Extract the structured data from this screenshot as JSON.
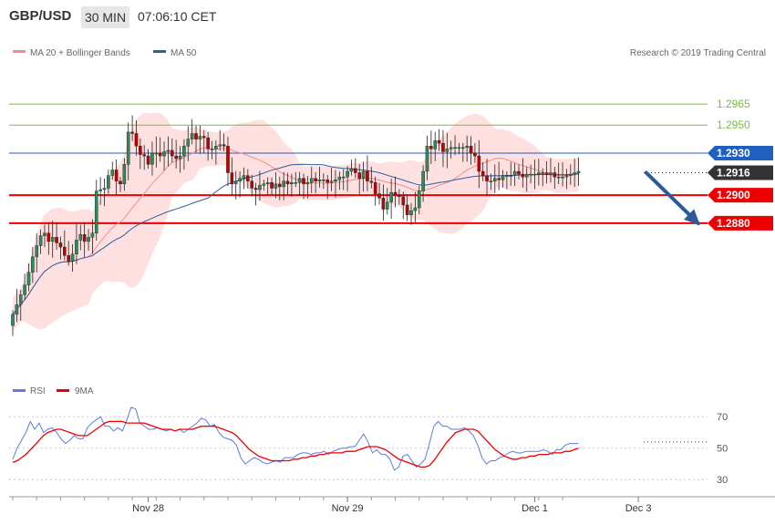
{
  "header": {
    "symbol": "GBP/USD",
    "timeframe": "30 MIN",
    "time": "07:06:10 CET"
  },
  "legend": {
    "bollinger": "MA 20 + Bollinger Bands",
    "ma50": "MA 50",
    "rsi": "RSI",
    "ma9": "9MA",
    "copyright": "Research © 2019 Trading Central"
  },
  "colors": {
    "up": "#2e8b57",
    "down": "#c00000",
    "band": "#ffd6d6",
    "ma20": "#f28c8c",
    "ma50": "#2f5f9e",
    "support": "#ee0000",
    "resistance": "#7dbb45",
    "pivot": "#1f5fbf",
    "last": "#333333",
    "arrow": "#2a5a9a"
  },
  "chart_data": [
    {
      "type": "candlestick",
      "title": "GBP/USD 30 MIN",
      "ylim": [
        1.2774,
        1.2995
      ],
      "x_labels": [
        "Nov 28",
        "Nov 29",
        "Dec 1",
        "Dec 3"
      ],
      "x_label_index": [
        34,
        84,
        131,
        157
      ],
      "n_bars": 161,
      "levels": [
        {
          "label": "1.2965",
          "value": 1.2965,
          "kind": "resistance"
        },
        {
          "label": "1.2950",
          "value": 1.295,
          "kind": "resistance"
        },
        {
          "label": "1.2930",
          "value": 1.293,
          "kind": "pivot"
        },
        {
          "label": "1.2916",
          "value": 1.2916,
          "kind": "last"
        },
        {
          "label": "1.2900",
          "value": 1.29,
          "kind": "support"
        },
        {
          "label": "1.2880",
          "value": 1.288,
          "kind": "support"
        }
      ],
      "forecast": {
        "from_index": 159,
        "to_index": 172,
        "from_value": 1.2916,
        "to_value": 1.288
      },
      "close": [
        1.2815,
        1.2822,
        1.2829,
        1.2836,
        1.2845,
        1.2856,
        1.2864,
        1.2871,
        1.2873,
        1.2867,
        1.287,
        1.2866,
        1.2863,
        1.2857,
        1.2853,
        1.2858,
        1.2868,
        1.2872,
        1.2867,
        1.287,
        1.2873,
        1.2903,
        1.2904,
        1.2905,
        1.2914,
        1.2918,
        1.291,
        1.2908,
        1.2922,
        1.2945,
        1.2944,
        1.2935,
        1.2929,
        1.2928,
        1.2922,
        1.293,
        1.293,
        1.2928,
        1.2931,
        1.2932,
        1.2928,
        1.2926,
        1.2928,
        1.2935,
        1.294,
        1.2944,
        1.294,
        1.2942,
        1.2941,
        1.2933,
        1.2933,
        1.2935,
        1.2936,
        1.2935,
        1.2916,
        1.2908,
        1.291,
        1.2912,
        1.2914,
        1.291,
        1.2905,
        1.2904,
        1.2907,
        1.2908,
        1.2909,
        1.2905,
        1.2908,
        1.2906,
        1.291,
        1.2908,
        1.2909,
        1.2909,
        1.2912,
        1.2908,
        1.2909,
        1.2912,
        1.291,
        1.2911,
        1.2911,
        1.2909,
        1.291,
        1.2911,
        1.2913,
        1.2913,
        1.2917,
        1.2919,
        1.2916,
        1.2912,
        1.2917,
        1.291,
        1.2909,
        1.2901,
        1.2898,
        1.289,
        1.2895,
        1.2902,
        1.29,
        1.2899,
        1.2893,
        1.2886,
        1.2889,
        1.2891,
        1.2903,
        1.2917,
        1.2935,
        1.2933,
        1.2939,
        1.2937,
        1.2931,
        1.2933,
        1.2934,
        1.2934,
        1.2934,
        1.2934,
        1.2935,
        1.293,
        1.2928,
        1.2917,
        1.2914,
        1.291,
        1.291,
        1.2912,
        1.2911,
        1.2914,
        1.2914,
        1.2914,
        1.2917,
        1.2915,
        1.2913,
        1.2915,
        1.2915,
        1.2915,
        1.2916,
        1.2916,
        1.2915,
        1.2916,
        1.2913,
        1.2913,
        1.2913,
        1.2914,
        1.2915,
        1.2916,
        1.2917
      ]
    },
    {
      "type": "line",
      "title": "RSI",
      "ylim": [
        22,
        80
      ],
      "y_ticks": [
        30,
        50,
        70
      ],
      "dotted_level": 54,
      "series": [
        {
          "name": "RSI",
          "values": [
            43,
            50,
            55,
            60,
            67,
            62,
            66,
            60,
            62,
            63,
            60,
            56,
            53,
            55,
            58,
            56,
            56,
            63,
            66,
            68,
            70,
            64,
            64,
            61,
            63,
            61,
            68,
            76,
            75,
            66,
            64,
            62,
            62,
            63,
            62,
            61,
            62,
            61,
            62,
            60,
            62,
            64,
            66,
            69,
            68,
            64,
            65,
            60,
            57,
            56,
            55,
            52,
            44,
            40,
            42,
            44,
            43,
            41,
            40,
            41,
            42,
            41,
            44,
            44,
            44,
            46,
            47,
            47,
            46,
            47,
            47,
            48,
            46,
            48,
            49,
            50,
            50,
            51,
            51,
            55,
            59,
            54,
            47,
            49,
            46,
            46,
            43,
            36,
            38,
            45,
            46,
            42,
            38,
            40,
            43,
            53,
            64,
            67,
            64,
            64,
            62,
            62,
            62,
            63,
            61,
            58,
            52,
            44,
            40,
            42,
            42,
            44,
            45,
            47,
            48,
            47,
            47,
            48,
            48,
            48,
            48,
            49,
            48,
            46,
            49,
            49,
            52,
            53,
            53,
            53
          ]
        },
        {
          "name": "9MA",
          "values": [
            41,
            42,
            44,
            46,
            49,
            52,
            55,
            58,
            60,
            61,
            62,
            62,
            61,
            60,
            59,
            58,
            58,
            58,
            60,
            62,
            64,
            66,
            67,
            67,
            67,
            67,
            66,
            66,
            66,
            66,
            66,
            65,
            64,
            63,
            62,
            62,
            62,
            61,
            62,
            62,
            62,
            62,
            63,
            64,
            64,
            64,
            64,
            63,
            62,
            61,
            60,
            58,
            55,
            52,
            49,
            47,
            45,
            44,
            43,
            42,
            42,
            42,
            42,
            42,
            43,
            43,
            44,
            44,
            45,
            45,
            46,
            46,
            47,
            47,
            47,
            47,
            48,
            48,
            48,
            49,
            50,
            51,
            51,
            51,
            50,
            49,
            47,
            45,
            43,
            42,
            41,
            40,
            39,
            38,
            38,
            39,
            42,
            46,
            50,
            54,
            57,
            60,
            61,
            62,
            62,
            62,
            61,
            58,
            55,
            52,
            49,
            47,
            45,
            44,
            43,
            43,
            44,
            44,
            45,
            45,
            46,
            46,
            46,
            47,
            47,
            47,
            48,
            48,
            49,
            50
          ]
        }
      ]
    }
  ]
}
